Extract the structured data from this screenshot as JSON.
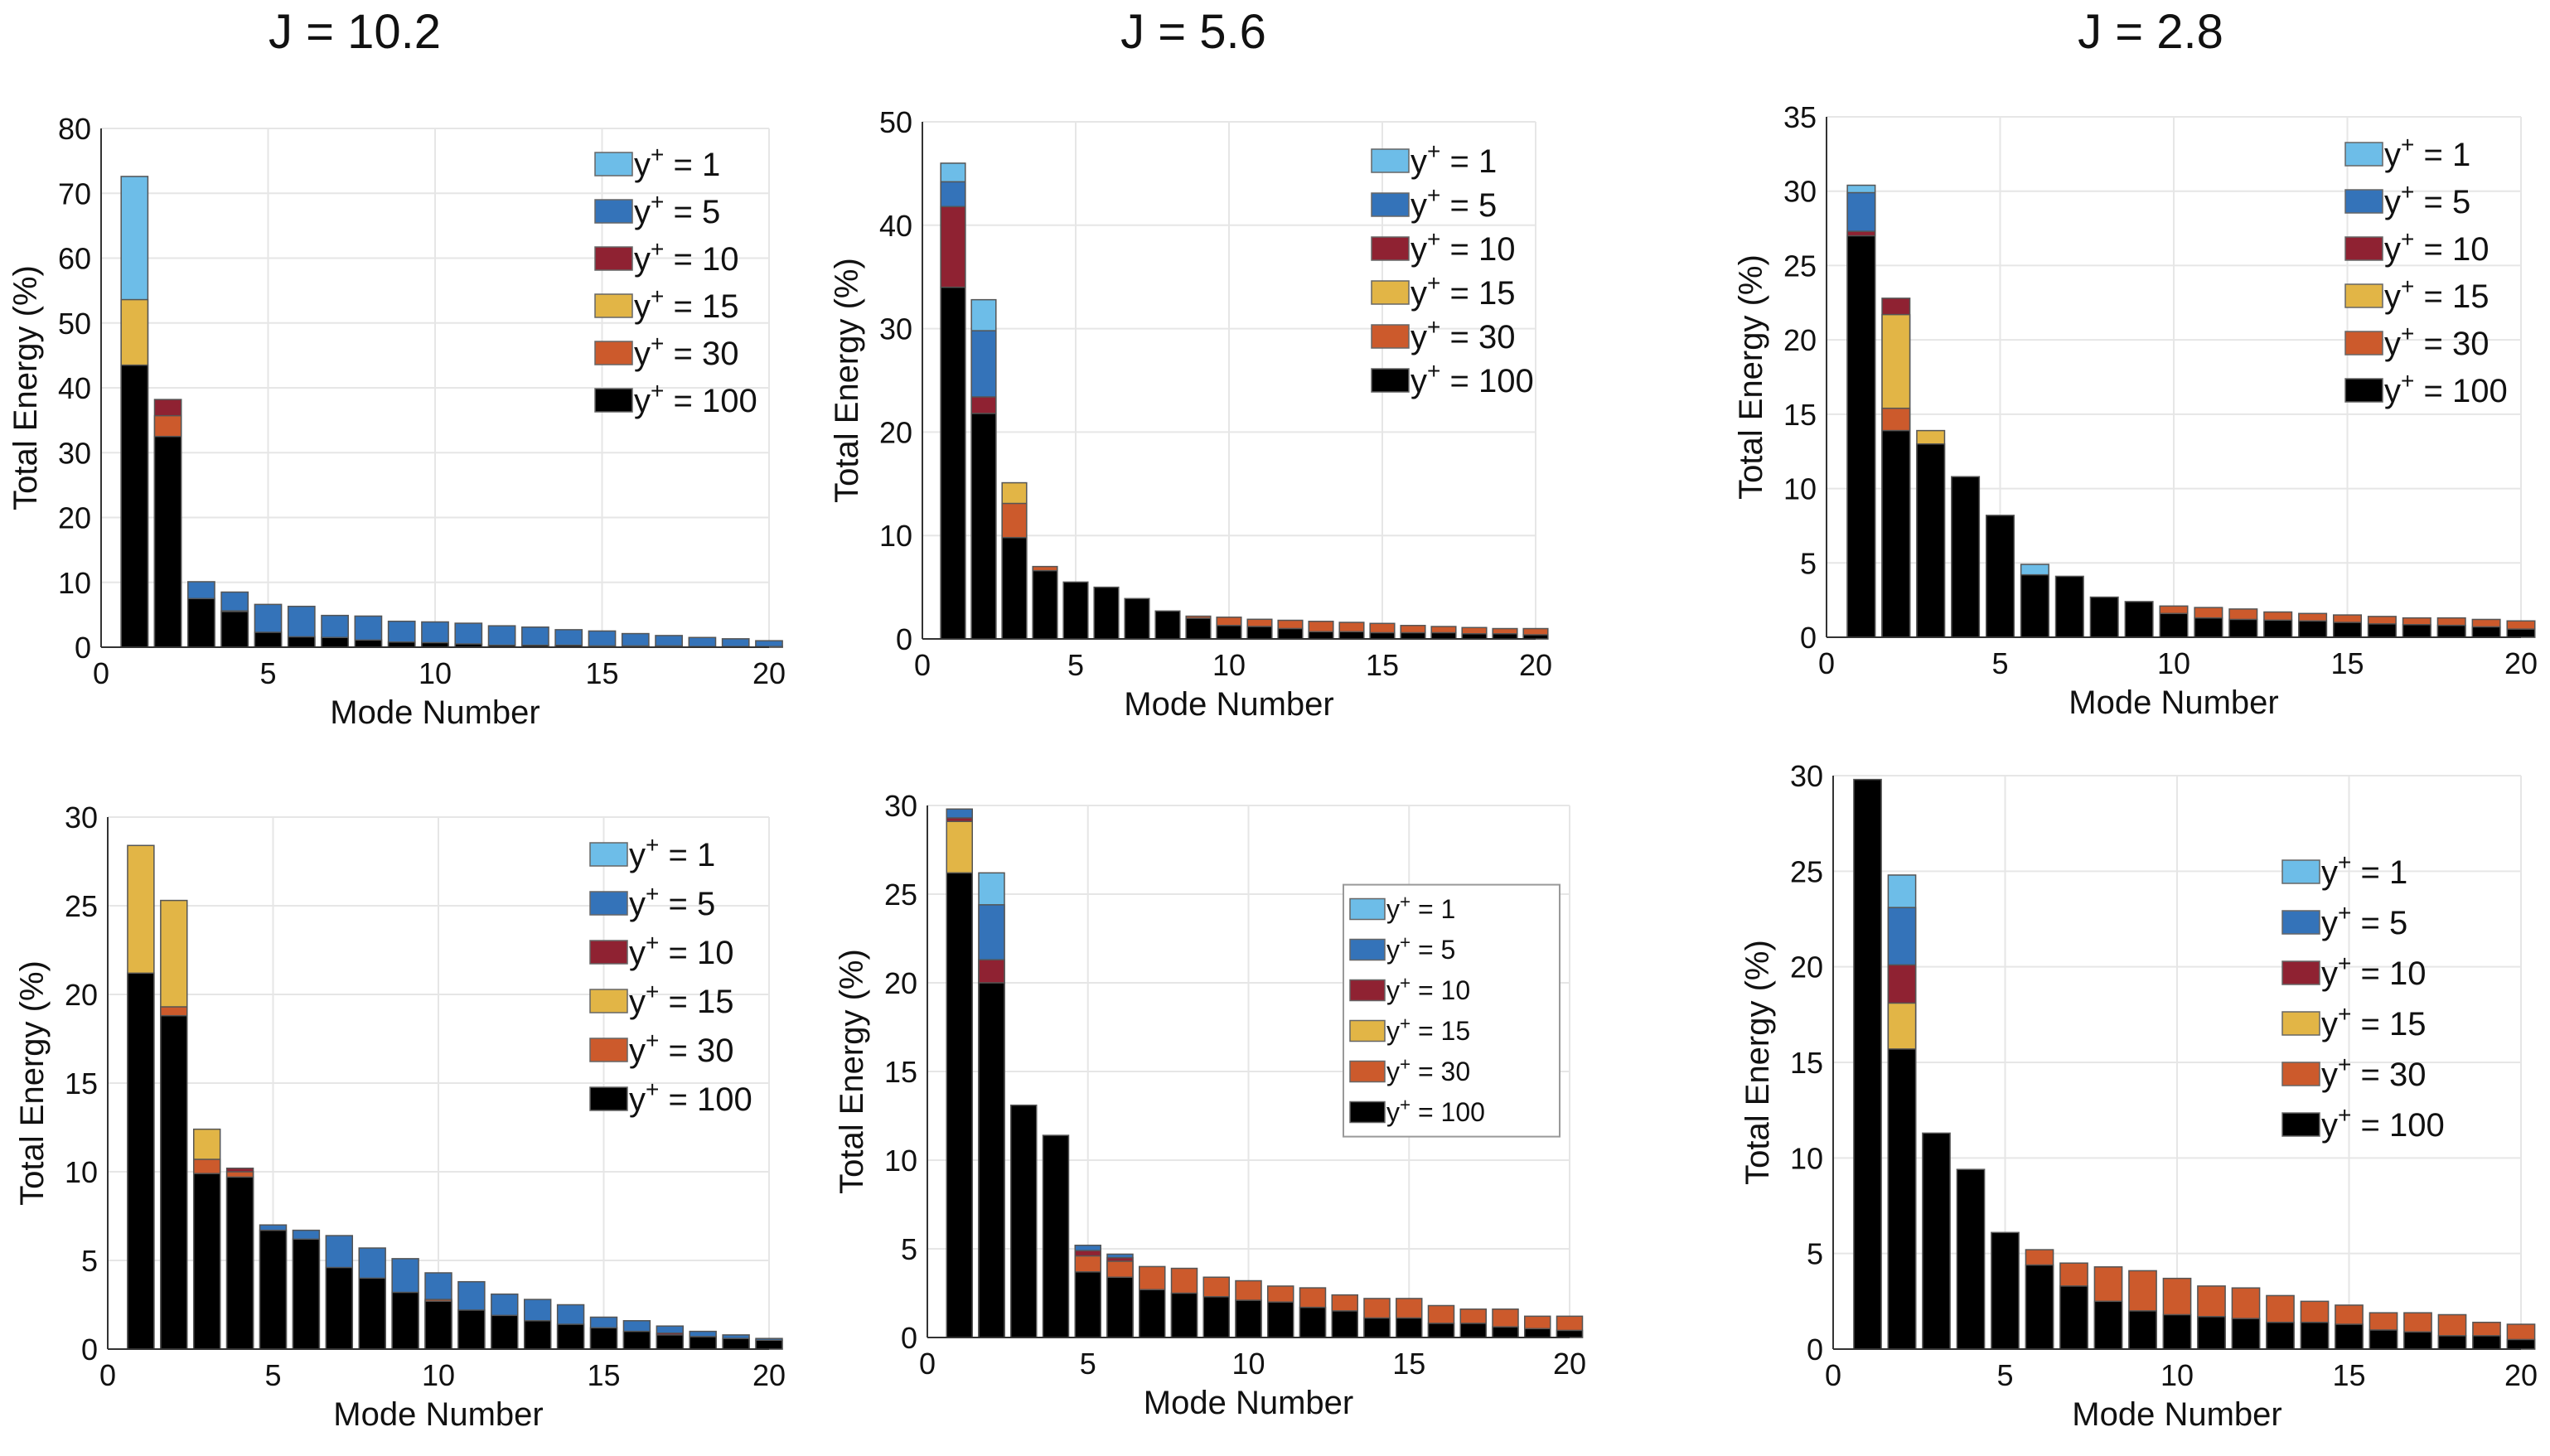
{
  "column_titles": [
    "J = 10.2",
    "J = 5.6",
    "J = 2.8"
  ],
  "series_colors": [
    "#6DBDE8",
    "#3473B9",
    "#8F2232",
    "#E2B546",
    "#CC5A2C",
    "#000000"
  ],
  "chart_data": [
    {
      "type": "bar",
      "mode": "overlaid",
      "column_title": "J = 10.2",
      "row": "top",
      "title": "",
      "xlabel": "Mode Number",
      "ylabel": "Total Energy (%)",
      "xlim": [
        0,
        20
      ],
      "ylim": [
        0,
        80
      ],
      "xticks": [
        0,
        5,
        10,
        15,
        20
      ],
      "yticks": [
        0,
        10,
        20,
        30,
        40,
        50,
        60,
        70,
        80
      ],
      "grid": true,
      "legend_placement": "top-right",
      "x": [
        1,
        2,
        3,
        4,
        5,
        6,
        7,
        8,
        9,
        10,
        11,
        12,
        13,
        14,
        15,
        16,
        17,
        18,
        19,
        20
      ],
      "series": [
        {
          "name": "y+ = 1",
          "values": [
            72.6,
            0,
            0,
            0,
            0,
            0,
            0,
            0,
            0,
            0,
            0,
            0,
            0,
            0,
            0,
            0,
            0,
            0,
            0,
            0
          ]
        },
        {
          "name": "y+ = 5",
          "values": [
            0,
            0,
            10.1,
            8.5,
            6.6,
            6.3,
            4.9,
            4.8,
            4.0,
            3.9,
            3.7,
            3.3,
            3.1,
            2.7,
            2.5,
            2.1,
            1.8,
            1.5,
            1.3,
            1.0
          ]
        },
        {
          "name": "y+ = 10",
          "values": [
            0,
            38.2,
            0,
            5.6,
            0,
            0,
            0,
            0,
            0,
            0,
            0,
            0,
            0,
            0,
            0,
            0,
            0,
            0,
            0,
            0
          ]
        },
        {
          "name": "y+ = 15",
          "values": [
            53.6,
            0,
            0,
            0,
            0,
            0,
            0,
            0,
            0,
            0,
            0,
            0,
            0,
            0,
            0,
            0,
            0,
            0,
            0,
            0
          ]
        },
        {
          "name": "y+ = 30",
          "values": [
            0,
            35.7,
            0,
            0,
            0,
            0,
            0,
            0,
            0,
            0,
            0,
            0,
            0,
            0,
            0,
            0,
            0,
            0,
            0,
            0
          ]
        },
        {
          "name": "y+ = 100",
          "values": [
            43.5,
            32.5,
            7.5,
            5.5,
            2.3,
            1.6,
            1.5,
            1.1,
            0.8,
            0.7,
            0.5,
            0.3,
            0.3,
            0.3,
            0.2,
            0.2,
            0.2,
            0.1,
            0.1,
            0.1
          ]
        }
      ]
    },
    {
      "type": "bar",
      "mode": "overlaid",
      "column_title": "J = 5.6",
      "row": "top",
      "title": "",
      "xlabel": "Mode Number",
      "ylabel": "Total Energy (%)",
      "xlim": [
        0,
        20
      ],
      "ylim": [
        0,
        50
      ],
      "xticks": [
        0,
        5,
        10,
        15,
        20
      ],
      "yticks": [
        0,
        10,
        20,
        30,
        40,
        50
      ],
      "grid": true,
      "legend_placement": "top-right",
      "x": [
        1,
        2,
        3,
        4,
        5,
        6,
        7,
        8,
        9,
        10,
        11,
        12,
        13,
        14,
        15,
        16,
        17,
        18,
        19,
        20
      ],
      "series": [
        {
          "name": "y+ = 1",
          "values": [
            46.0,
            32.8,
            0,
            0,
            0,
            0,
            0,
            0,
            0,
            0,
            0,
            0,
            0,
            0,
            0,
            0,
            0,
            0,
            0,
            0
          ]
        },
        {
          "name": "y+ = 5",
          "values": [
            44.2,
            29.8,
            0,
            0,
            0,
            0,
            0,
            0,
            0,
            0,
            0,
            0,
            0,
            0,
            0,
            0,
            0,
            0,
            0,
            0
          ]
        },
        {
          "name": "y+ = 10",
          "values": [
            41.8,
            23.4,
            0,
            0,
            0,
            0,
            0,
            0,
            0,
            0,
            0,
            0,
            0,
            0,
            0,
            0,
            0,
            0,
            0,
            0
          ]
        },
        {
          "name": "y+ = 15",
          "values": [
            0,
            0,
            15.1,
            0,
            0,
            0,
            0,
            0,
            0,
            0,
            0,
            0,
            0,
            0,
            0,
            0,
            0,
            0,
            0,
            0
          ]
        },
        {
          "name": "y+ = 30",
          "values": [
            0,
            0,
            13.1,
            7.0,
            0,
            0,
            0,
            0,
            2.2,
            2.1,
            1.9,
            1.8,
            1.7,
            1.6,
            1.5,
            1.3,
            1.2,
            1.1,
            1.0,
            1.0
          ]
        },
        {
          "name": "y+ = 100",
          "values": [
            34.0,
            21.8,
            9.8,
            6.6,
            5.5,
            5.0,
            3.9,
            2.7,
            2.0,
            1.3,
            1.2,
            1.0,
            0.7,
            0.7,
            0.6,
            0.6,
            0.6,
            0.5,
            0.5,
            0.4
          ]
        }
      ]
    },
    {
      "type": "bar",
      "mode": "overlaid",
      "column_title": "J = 2.8",
      "row": "top",
      "title": "",
      "xlabel": "Mode Number",
      "ylabel": "Total Energy (%)",
      "xlim": [
        0,
        20
      ],
      "ylim": [
        0,
        35
      ],
      "xticks": [
        0,
        5,
        10,
        15,
        20
      ],
      "yticks": [
        0,
        5,
        10,
        15,
        20,
        25,
        30,
        35
      ],
      "grid": true,
      "legend_placement": "top-right",
      "x": [
        1,
        2,
        3,
        4,
        5,
        6,
        7,
        8,
        9,
        10,
        11,
        12,
        13,
        14,
        15,
        16,
        17,
        18,
        19,
        20
      ],
      "series": [
        {
          "name": "y+ = 1",
          "values": [
            30.4,
            0,
            0,
            0,
            0,
            4.9,
            0,
            0,
            0,
            0,
            0,
            0,
            0,
            0,
            0,
            0,
            0,
            0,
            0,
            0
          ]
        },
        {
          "name": "y+ = 5",
          "values": [
            29.9,
            0,
            0,
            0,
            0,
            0,
            0,
            0,
            0,
            0,
            0,
            0,
            0,
            0,
            0,
            0,
            0,
            0,
            0,
            0
          ]
        },
        {
          "name": "y+ = 10",
          "values": [
            27.3,
            22.8,
            0,
            0,
            0,
            0,
            0,
            0,
            0,
            0,
            0,
            0,
            0,
            0,
            0,
            0,
            0,
            0,
            0,
            0
          ]
        },
        {
          "name": "y+ = 15",
          "values": [
            0,
            21.7,
            13.9,
            0,
            0,
            0,
            0,
            0,
            0,
            0,
            0,
            0,
            0,
            0,
            0,
            0,
            0,
            0,
            0,
            0
          ]
        },
        {
          "name": "y+ = 30",
          "values": [
            0,
            15.4,
            0,
            0,
            0,
            0,
            0,
            0,
            0,
            2.1,
            2.0,
            1.9,
            1.7,
            1.6,
            1.5,
            1.4,
            1.3,
            1.3,
            1.2,
            1.1
          ]
        },
        {
          "name": "y+ = 100",
          "values": [
            27.0,
            13.9,
            13.0,
            10.8,
            8.2,
            4.2,
            4.1,
            2.7,
            2.4,
            1.6,
            1.3,
            1.2,
            1.15,
            1.1,
            1.0,
            0.9,
            0.85,
            0.8,
            0.7,
            0.55
          ]
        }
      ]
    },
    {
      "type": "bar",
      "mode": "overlaid",
      "column_title": "J = 10.2",
      "row": "bottom",
      "title": "",
      "xlabel": "Mode Number",
      "ylabel": "Total Energy (%)",
      "xlim": [
        0,
        20
      ],
      "ylim": [
        0,
        30
      ],
      "xticks": [
        0,
        5,
        10,
        15,
        20
      ],
      "yticks": [
        0,
        5,
        10,
        15,
        20,
        25,
        30
      ],
      "grid": true,
      "legend_placement": "top-right",
      "x": [
        1,
        2,
        3,
        4,
        5,
        6,
        7,
        8,
        9,
        10,
        11,
        12,
        13,
        14,
        15,
        16,
        17,
        18,
        19,
        20
      ],
      "series": [
        {
          "name": "y+ = 1",
          "values": [
            0,
            0,
            0,
            0,
            0,
            0,
            0,
            0,
            0,
            0,
            0,
            0,
            0,
            0,
            0,
            0,
            0,
            0,
            0,
            0
          ]
        },
        {
          "name": "y+ = 5",
          "values": [
            0,
            0,
            0,
            0,
            7.0,
            6.7,
            6.4,
            5.7,
            5.1,
            4.3,
            3.8,
            3.1,
            2.8,
            2.5,
            1.8,
            1.6,
            1.3,
            1.0,
            0.8,
            0.6
          ]
        },
        {
          "name": "y+ = 10",
          "values": [
            0,
            0,
            0,
            10.2,
            0,
            0,
            0,
            0,
            0,
            0,
            0,
            0,
            0,
            0,
            0,
            0,
            0.9,
            0.7,
            0,
            0
          ]
        },
        {
          "name": "y+ = 15",
          "values": [
            28.4,
            25.3,
            12.4,
            0,
            0,
            0,
            0,
            0,
            0,
            0,
            0,
            0,
            0,
            0,
            0,
            0,
            0,
            0,
            0,
            0
          ]
        },
        {
          "name": "y+ = 30",
          "values": [
            0,
            19.3,
            10.7,
            10.0,
            0,
            0,
            0,
            0,
            0,
            2.8,
            0,
            0,
            0,
            0,
            0,
            0,
            0,
            0,
            0,
            0
          ]
        },
        {
          "name": "y+ = 100",
          "values": [
            21.2,
            18.8,
            9.9,
            9.7,
            6.7,
            6.2,
            4.6,
            4.0,
            3.2,
            2.7,
            2.2,
            1.9,
            1.6,
            1.4,
            1.2,
            1.0,
            0.8,
            0.7,
            0.6,
            0.5
          ]
        }
      ]
    },
    {
      "type": "bar",
      "mode": "overlaid",
      "column_title": "J = 5.6",
      "row": "bottom",
      "title": "",
      "xlabel": "Mode Number",
      "ylabel": "Total Energy (%)",
      "xlim": [
        0,
        20
      ],
      "ylim": [
        0,
        30
      ],
      "xticks": [
        0,
        5,
        10,
        15,
        20
      ],
      "yticks": [
        0,
        5,
        10,
        15,
        20,
        25,
        30
      ],
      "grid": true,
      "legend_placement": "center-right-boxed",
      "x": [
        1,
        2,
        3,
        4,
        5,
        6,
        7,
        8,
        9,
        10,
        11,
        12,
        13,
        14,
        15,
        16,
        17,
        18,
        19,
        20
      ],
      "series": [
        {
          "name": "y+ = 1",
          "values": [
            0,
            26.2,
            0,
            0,
            0,
            0,
            0,
            0,
            0,
            0,
            0,
            0,
            0,
            0,
            0,
            0,
            0,
            0,
            0,
            0
          ]
        },
        {
          "name": "y+ = 5",
          "values": [
            29.8,
            24.4,
            0,
            0,
            5.2,
            4.7,
            0,
            0,
            0,
            0,
            0,
            0,
            0,
            0,
            0,
            0,
            0,
            0,
            0,
            0
          ]
        },
        {
          "name": "y+ = 10",
          "values": [
            29.3,
            21.3,
            0,
            0,
            4.9,
            4.5,
            0,
            0,
            0,
            0,
            0,
            0,
            0,
            0,
            0,
            0,
            0,
            0,
            0,
            0
          ]
        },
        {
          "name": "y+ = 15",
          "values": [
            29.1,
            0,
            0,
            0,
            0,
            0,
            0,
            0,
            0,
            0,
            0,
            0,
            0,
            0,
            0,
            0,
            0,
            0,
            0,
            0
          ]
        },
        {
          "name": "y+ = 30",
          "values": [
            0,
            0,
            0,
            0,
            4.6,
            4.3,
            4.0,
            3.9,
            3.4,
            3.2,
            2.9,
            2.8,
            2.4,
            2.2,
            2.2,
            1.8,
            1.6,
            1.6,
            1.2,
            1.2
          ]
        },
        {
          "name": "y+ = 100",
          "values": [
            26.2,
            20.0,
            13.1,
            11.4,
            3.7,
            3.4,
            2.7,
            2.5,
            2.3,
            2.1,
            2.0,
            1.7,
            1.5,
            1.1,
            1.1,
            0.8,
            0.8,
            0.6,
            0.5,
            0.4
          ]
        }
      ]
    },
    {
      "type": "bar",
      "mode": "overlaid",
      "column_title": "J = 2.8",
      "row": "bottom",
      "title": "",
      "xlabel": "Mode Number",
      "ylabel": "Total Energy (%)",
      "xlim": [
        0,
        20
      ],
      "ylim": [
        0,
        30
      ],
      "xticks": [
        0,
        5,
        10,
        15,
        20
      ],
      "yticks": [
        0,
        5,
        10,
        15,
        20,
        25,
        30
      ],
      "grid": true,
      "legend_placement": "center-right",
      "x": [
        1,
        2,
        3,
        4,
        5,
        6,
        7,
        8,
        9,
        10,
        11,
        12,
        13,
        14,
        15,
        16,
        17,
        18,
        19,
        20
      ],
      "series": [
        {
          "name": "y+ = 1",
          "values": [
            0,
            24.8,
            0,
            0,
            0,
            0,
            0,
            0,
            0,
            0,
            0,
            0,
            0,
            0,
            0,
            0,
            0,
            0,
            0,
            0
          ]
        },
        {
          "name": "y+ = 5",
          "values": [
            0,
            23.1,
            0,
            0,
            0,
            0,
            0,
            0,
            0,
            0,
            0,
            0,
            0,
            0,
            0,
            0,
            0,
            0,
            0,
            0
          ]
        },
        {
          "name": "y+ = 10",
          "values": [
            0,
            20.1,
            0,
            0,
            0,
            0,
            0,
            0,
            0,
            0,
            0,
            0,
            0,
            0,
            0,
            0,
            0,
            0,
            0,
            0
          ]
        },
        {
          "name": "y+ = 15",
          "values": [
            0,
            18.1,
            0,
            0,
            0,
            0,
            0,
            0,
            0,
            0,
            0,
            0,
            0,
            0,
            0,
            0,
            0,
            0,
            0,
            0
          ]
        },
        {
          "name": "y+ = 30",
          "values": [
            0,
            0,
            0,
            0,
            0,
            5.2,
            4.5,
            4.3,
            4.1,
            3.7,
            3.3,
            3.2,
            2.8,
            2.5,
            2.3,
            1.9,
            1.9,
            1.8,
            1.4,
            1.3
          ]
        },
        {
          "name": "y+ = 100",
          "values": [
            29.8,
            15.7,
            11.3,
            9.4,
            6.1,
            4.4,
            3.3,
            2.5,
            2.0,
            1.8,
            1.7,
            1.6,
            1.4,
            1.4,
            1.3,
            1.0,
            0.9,
            0.7,
            0.7,
            0.5
          ]
        }
      ]
    }
  ]
}
